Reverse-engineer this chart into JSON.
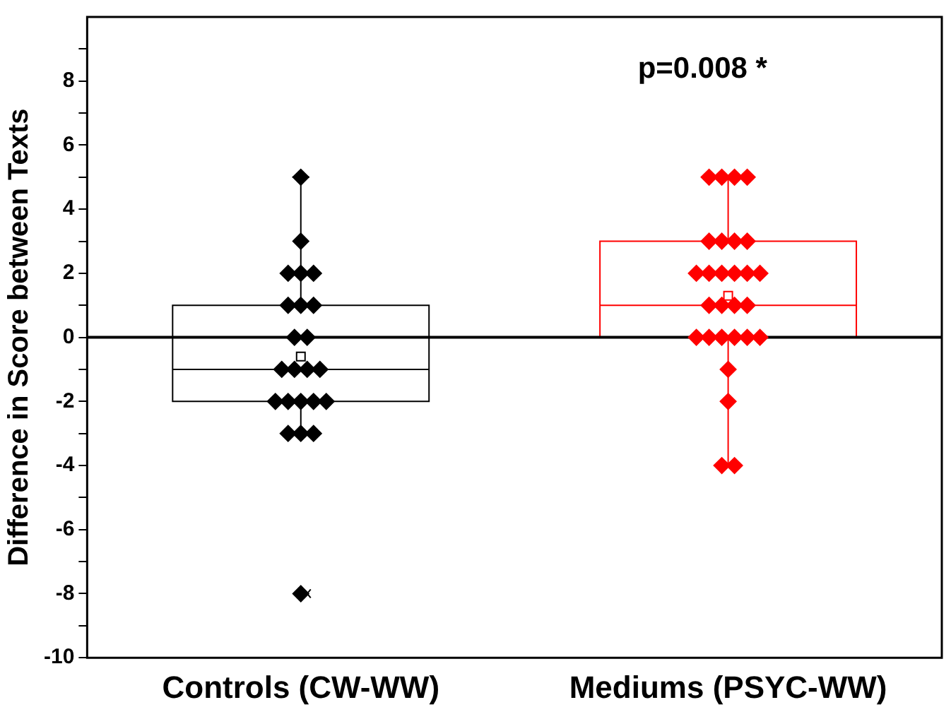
{
  "chart_data": {
    "type": "box",
    "ylabel": "Difference in Score between Texts",
    "categories": [
      "Controls (CW-WW)",
      "Mediums (PSYC-WW)"
    ],
    "colors": [
      "#000000",
      "#ff0000"
    ],
    "boxes": [
      {
        "low": -3,
        "q1": -2,
        "median": -1,
        "q3": 1,
        "high": 5,
        "mean": -0.6,
        "outliers": [
          -8
        ]
      },
      {
        "low": -4,
        "q1": 0,
        "median": 1,
        "q3": 3,
        "high": 5,
        "mean": 1.3
      }
    ],
    "series": [
      {
        "type": "scatter",
        "color": "#000000",
        "x": [
          "Controls (CW-WW)",
          "Controls (CW-WW)",
          "Controls (CW-WW)",
          "Controls (CW-WW)",
          "Controls (CW-WW)",
          "Controls (CW-WW)",
          "Controls (CW-WW)",
          "Controls (CW-WW)",
          "Controls (CW-WW)",
          "Controls (CW-WW)",
          "Controls (CW-WW)",
          "Controls (CW-WW)",
          "Controls (CW-WW)",
          "Controls (CW-WW)",
          "Controls (CW-WW)",
          "Controls (CW-WW)",
          "Controls (CW-WW)",
          "Controls (CW-WW)",
          "Controls (CW-WW)",
          "Controls (CW-WW)",
          "Controls (CW-WW)",
          "Controls (CW-WW)",
          "Controls (CW-WW)"
        ],
        "values": [
          5,
          3,
          2,
          2,
          2,
          1,
          1,
          1,
          0,
          0,
          -1,
          -1,
          -1,
          -1,
          -2,
          -2,
          -2,
          -2,
          -2,
          -3,
          -3,
          -3,
          -8
        ]
      },
      {
        "type": "scatter",
        "color": "#ff0000",
        "x": [
          "Mediums (PSYC-WW)",
          "Mediums (PSYC-WW)",
          "Mediums (PSYC-WW)",
          "Mediums (PSYC-WW)",
          "Mediums (PSYC-WW)",
          "Mediums (PSYC-WW)",
          "Mediums (PSYC-WW)",
          "Mediums (PSYC-WW)",
          "Mediums (PSYC-WW)",
          "Mediums (PSYC-WW)",
          "Mediums (PSYC-WW)",
          "Mediums (PSYC-WW)",
          "Mediums (PSYC-WW)",
          "Mediums (PSYC-WW)",
          "Mediums (PSYC-WW)",
          "Mediums (PSYC-WW)",
          "Mediums (PSYC-WW)",
          "Mediums (PSYC-WW)",
          "Mediums (PSYC-WW)",
          "Mediums (PSYC-WW)",
          "Mediums (PSYC-WW)",
          "Mediums (PSYC-WW)",
          "Mediums (PSYC-WW)",
          "Mediums (PSYC-WW)",
          "Mediums (PSYC-WW)",
          "Mediums (PSYC-WW)",
          "Mediums (PSYC-WW)",
          "Mediums (PSYC-WW)"
        ],
        "values": [
          5,
          5,
          5,
          5,
          3,
          3,
          3,
          3,
          2,
          2,
          2,
          2,
          2,
          2,
          1,
          1,
          1,
          1,
          0,
          0,
          0,
          0,
          0,
          0,
          -1,
          -2,
          -4,
          -4
        ]
      }
    ],
    "ylim": [
      -10,
      10
    ],
    "yticks": [
      -10,
      {
        "value": -9,
        "label": null
      },
      -8,
      {
        "value": -7,
        "label": null
      },
      -6,
      {
        "value": -5,
        "label": null
      },
      -4,
      {
        "value": -3,
        "label": null
      },
      -2,
      {
        "value": -1,
        "label": null
      },
      0,
      {
        "value": 1,
        "label": null
      },
      2,
      {
        "value": 3,
        "label": null
      },
      4,
      {
        "value": 5,
        "label": null
      },
      6,
      {
        "value": 7,
        "label": null
      },
      8,
      {
        "value": 9,
        "label": null
      }
    ],
    "ref_lines": [
      {
        "axis": "y",
        "value": 0,
        "color": "#000000"
      }
    ],
    "annotations": [
      "p=0.008 *"
    ],
    "marker": "diamond",
    "grid": false,
    "legend": false
  }
}
